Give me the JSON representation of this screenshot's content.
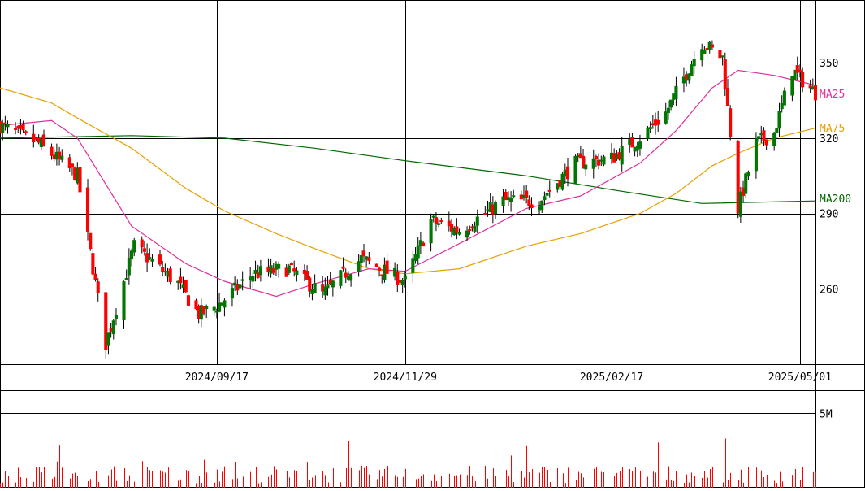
{
  "chart_data": [
    {
      "type": "candlestick",
      "title": "",
      "x_dates": [
        "2024/09/17",
        "2024/11/29",
        "2025/02/17",
        "2025/05/01"
      ],
      "x_range": [
        "2024/06/25",
        "2025/05/07"
      ],
      "ylim": [
        230,
        375
      ],
      "y_ticks": [
        260,
        290,
        320,
        350
      ],
      "grid": true,
      "up_color": "#007700",
      "down_color": "#ff0000",
      "legend": [
        {
          "name": "MA25",
          "color": "#e0309a"
        },
        {
          "name": "MA75",
          "color": "#e8a000"
        },
        {
          "name": "MA200",
          "color": "#006600"
        }
      ],
      "ohlc_anchors": [
        {
          "date": "2024/06/25",
          "close": 325
        },
        {
          "date": "2024/07/10",
          "close": 318
        },
        {
          "date": "2024/07/25",
          "close": 305
        },
        {
          "date": "2024/08/05",
          "close": 238
        },
        {
          "date": "2024/08/16",
          "close": 277
        },
        {
          "date": "2024/09/02",
          "close": 262
        },
        {
          "date": "2024/09/10",
          "close": 250
        },
        {
          "date": "2024/09/17",
          "close": 253
        },
        {
          "date": "2024/10/01",
          "close": 266
        },
        {
          "date": "2024/10/15",
          "close": 268
        },
        {
          "date": "2024/10/28",
          "close": 258
        },
        {
          "date": "2024/11/12",
          "close": 272
        },
        {
          "date": "2024/11/29",
          "close": 263
        },
        {
          "date": "2024/12/09",
          "close": 287
        },
        {
          "date": "2024/12/20",
          "close": 283
        },
        {
          "date": "2025/01/06",
          "close": 295
        },
        {
          "date": "2025/01/20",
          "close": 295
        },
        {
          "date": "2025/02/03",
          "close": 310
        },
        {
          "date": "2025/02/17",
          "close": 312
        },
        {
          "date": "2025/02/28",
          "close": 320
        },
        {
          "date": "2025/03/10",
          "close": 330
        },
        {
          "date": "2025/03/24",
          "close": 358
        },
        {
          "date": "2025/04/01",
          "close": 352
        },
        {
          "date": "2025/04/07",
          "close": 292
        },
        {
          "date": "2025/04/14",
          "close": 318
        },
        {
          "date": "2025/04/21",
          "close": 322
        },
        {
          "date": "2025/04/28",
          "close": 347
        },
        {
          "date": "2025/05/07",
          "close": 338
        }
      ],
      "ma25": [
        {
          "date": "2024/06/25",
          "value": 325
        },
        {
          "date": "2024/07/15",
          "value": 327
        },
        {
          "date": "2024/07/25",
          "value": 320
        },
        {
          "date": "2024/08/15",
          "value": 285
        },
        {
          "date": "2024/09/05",
          "value": 270
        },
        {
          "date": "2024/09/20",
          "value": 263
        },
        {
          "date": "2024/10/10",
          "value": 257
        },
        {
          "date": "2024/10/25",
          "value": 262
        },
        {
          "date": "2024/11/15",
          "value": 268
        },
        {
          "date": "2024/11/29",
          "value": 267
        },
        {
          "date": "2024/12/20",
          "value": 278
        },
        {
          "date": "2025/01/15",
          "value": 292
        },
        {
          "date": "2025/02/05",
          "value": 297
        },
        {
          "date": "2025/02/28",
          "value": 310
        },
        {
          "date": "2025/03/14",
          "value": 323
        },
        {
          "date": "2025/03/28",
          "value": 340
        },
        {
          "date": "2025/04/07",
          "value": 347
        },
        {
          "date": "2025/04/21",
          "value": 345
        },
        {
          "date": "2025/05/07",
          "value": 341
        }
      ],
      "ma75": [
        {
          "date": "2024/06/25",
          "value": 340
        },
        {
          "date": "2024/07/15",
          "value": 334
        },
        {
          "date": "2024/07/25",
          "value": 328
        },
        {
          "date": "2024/08/15",
          "value": 316
        },
        {
          "date": "2024/09/05",
          "value": 300
        },
        {
          "date": "2024/09/20",
          "value": 291
        },
        {
          "date": "2024/10/10",
          "value": 282
        },
        {
          "date": "2024/10/25",
          "value": 276
        },
        {
          "date": "2024/11/15",
          "value": 268
        },
        {
          "date": "2024/11/29",
          "value": 266
        },
        {
          "date": "2024/12/20",
          "value": 268
        },
        {
          "date": "2025/01/15",
          "value": 277
        },
        {
          "date": "2025/02/05",
          "value": 282
        },
        {
          "date": "2025/02/28",
          "value": 290
        },
        {
          "date": "2025/03/14",
          "value": 298
        },
        {
          "date": "2025/03/28",
          "value": 309
        },
        {
          "date": "2025/04/07",
          "value": 314
        },
        {
          "date": "2025/04/21",
          "value": 320
        },
        {
          "date": "2025/05/07",
          "value": 324
        }
      ],
      "ma200": [
        {
          "date": "2024/06/25",
          "value": 320
        },
        {
          "date": "2024/08/15",
          "value": 321
        },
        {
          "date": "2024/09/20",
          "value": 320
        },
        {
          "date": "2024/10/25",
          "value": 316
        },
        {
          "date": "2024/11/29",
          "value": 311
        },
        {
          "date": "2025/01/15",
          "value": 305
        },
        {
          "date": "2025/02/20",
          "value": 299
        },
        {
          "date": "2025/03/24",
          "value": 294
        },
        {
          "date": "2025/05/07",
          "value": 295
        }
      ]
    },
    {
      "type": "bar",
      "title": "",
      "y_ticks_labels": [
        "5M"
      ],
      "y_tick_values": [
        5000000
      ],
      "ylim": [
        0,
        6000000
      ],
      "bar_color": "#ff0000",
      "spike": {
        "date": "2025/04/30",
        "value": 5800000
      },
      "typical_range": [
        300000,
        1500000
      ]
    }
  ]
}
